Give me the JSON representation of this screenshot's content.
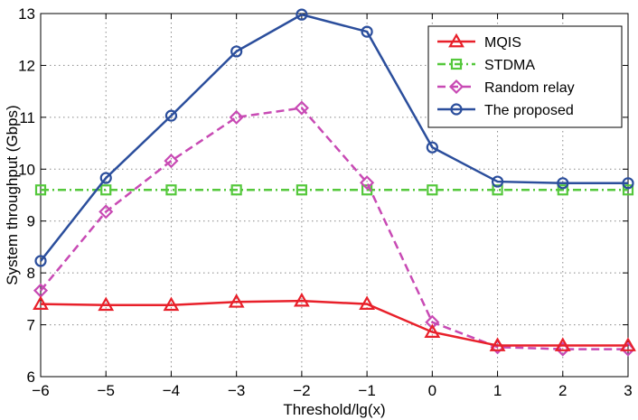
{
  "chart_data": {
    "type": "line",
    "title": "",
    "xlabel": "Threshold/lg(x)",
    "ylabel": "System throughput (Gbps)",
    "x": [
      -6,
      -5,
      -4,
      -3,
      -2,
      -1,
      0,
      1,
      2,
      3
    ],
    "xlim": [
      -6,
      3
    ],
    "ylim": [
      6,
      13
    ],
    "xticks": [
      "−6",
      "−5",
      "−4",
      "−3",
      "−2",
      "−1",
      "0",
      "1",
      "2",
      "3"
    ],
    "yticks": [
      "6",
      "7",
      "8",
      "9",
      "10",
      "11",
      "12",
      "13"
    ],
    "grid": true,
    "legend_position": "top-right",
    "series": [
      {
        "name": "MQIS",
        "color": "#e8202a",
        "marker": "triangle",
        "dash": "solid",
        "values": [
          7.4,
          7.38,
          7.38,
          7.44,
          7.46,
          7.4,
          6.86,
          6.6,
          6.6,
          6.6
        ]
      },
      {
        "name": "STDMA",
        "color": "#55c83c",
        "marker": "square",
        "dash": "dashdot",
        "values": [
          9.6,
          9.6,
          9.6,
          9.6,
          9.6,
          9.6,
          9.6,
          9.6,
          9.6,
          9.6
        ]
      },
      {
        "name": "Random relay",
        "color": "#c84ab4",
        "marker": "diamond",
        "dash": "dashed",
        "values": [
          7.66,
          9.18,
          10.16,
          11.0,
          11.18,
          9.74,
          7.05,
          6.57,
          6.53,
          6.53
        ]
      },
      {
        "name": "The proposed",
        "color": "#2b4e9c",
        "marker": "circle",
        "dash": "solid",
        "values": [
          8.23,
          9.83,
          11.03,
          12.27,
          12.98,
          12.65,
          10.42,
          9.76,
          9.73,
          9.73
        ]
      }
    ]
  }
}
